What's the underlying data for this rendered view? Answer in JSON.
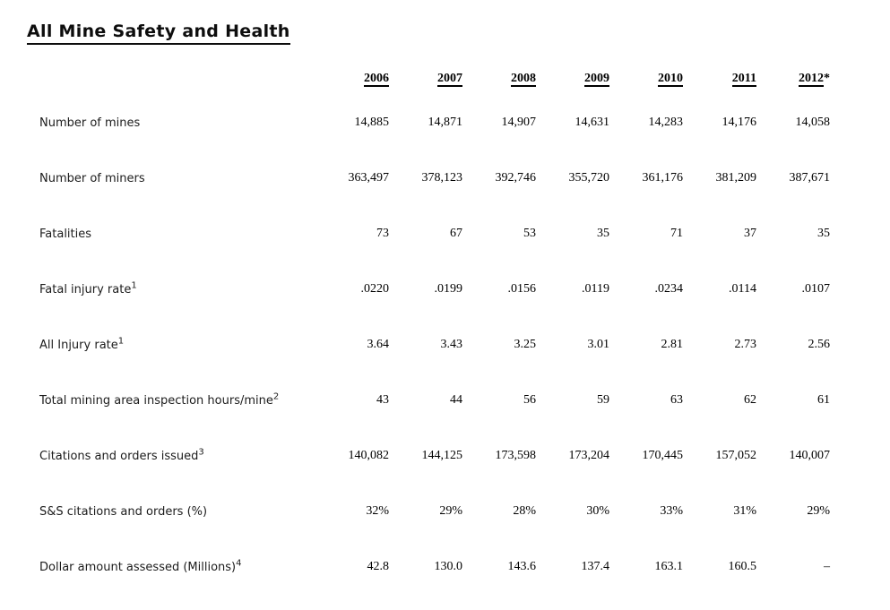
{
  "title": "All Mine Safety and Health",
  "table": {
    "columns": [
      "2006",
      "2007",
      "2008",
      "2009",
      "2010",
      "2011",
      "2012*"
    ],
    "rows": [
      {
        "label": "Number of mines",
        "sup": "",
        "values": [
          "14,885",
          "14,871",
          "14,907",
          "14,631",
          "14,283",
          "14,176",
          "14,058"
        ]
      },
      {
        "label": "Number of miners",
        "sup": "",
        "values": [
          "363,497",
          "378,123",
          "392,746",
          "355,720",
          "361,176",
          "381,209",
          "387,671"
        ]
      },
      {
        "label": "Fatalities",
        "sup": "",
        "values": [
          "73",
          "67",
          "53",
          "35",
          "71",
          "37",
          "35"
        ]
      },
      {
        "label": "Fatal injury rate",
        "sup": "1",
        "values": [
          ".0220",
          ".0199",
          ".0156",
          ".0119",
          ".0234",
          ".0114",
          ".0107"
        ]
      },
      {
        "label": "All Injury rate",
        "sup": "1",
        "values": [
          "3.64",
          "3.43",
          "3.25",
          "3.01",
          "2.81",
          "2.73",
          "2.56"
        ]
      },
      {
        "label": "Total mining area inspection hours/mine",
        "sup": "2",
        "values": [
          "43",
          "44",
          "56",
          "59",
          "63",
          "62",
          "61"
        ]
      },
      {
        "label": "Citations and orders issued",
        "sup": "3",
        "values": [
          "140,082",
          "144,125",
          "173,598",
          "173,204",
          "170,445",
          "157,052",
          "140,007"
        ]
      },
      {
        "label": "S&S citations and orders (%)",
        "sup": "",
        "values": [
          "32%",
          "29%",
          "28%",
          "30%",
          "33%",
          "31%",
          "29%"
        ]
      },
      {
        "label": "Dollar amount assessed (Millions)",
        "sup": "4",
        "values": [
          "42.8",
          "130.0",
          "143.6",
          "137.4",
          "163.1",
          "160.5",
          "–"
        ]
      }
    ]
  }
}
